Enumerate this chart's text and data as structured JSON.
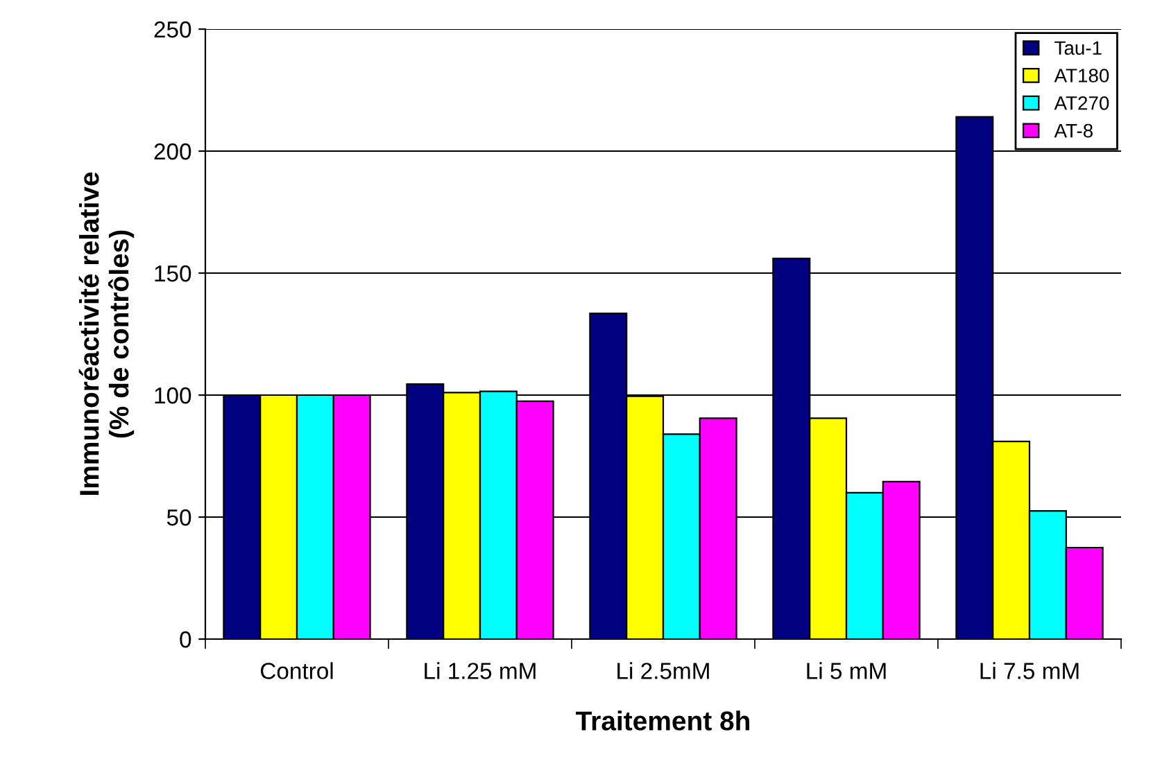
{
  "chart_data": {
    "type": "bar",
    "xlabel": "Traitement 8h",
    "ylabel": "Immunoréactivité relative\n(% de contrôles)",
    "categories": [
      "Control",
      "Li 1.25 mM",
      "Li 2.5mM",
      "Li 5 mM",
      "Li 7.5 mM"
    ],
    "series": [
      {
        "name": "Tau-1",
        "color": "#000080",
        "values": [
          100,
          104.5,
          133.5,
          156,
          214
        ]
      },
      {
        "name": "AT180",
        "color": "#ffff00",
        "values": [
          100,
          101,
          99.5,
          90.5,
          81
        ]
      },
      {
        "name": "AT270",
        "color": "#00ffff",
        "values": [
          100,
          101.5,
          84,
          60,
          52.5
        ]
      },
      {
        "name": "AT-8",
        "color": "#ff00ff",
        "values": [
          100,
          97.5,
          90.5,
          64.5,
          37.5
        ]
      }
    ],
    "ylim": [
      0,
      250
    ],
    "yticks": [
      0,
      50,
      100,
      150,
      200,
      250
    ],
    "grid": "y",
    "legend": "top right"
  }
}
